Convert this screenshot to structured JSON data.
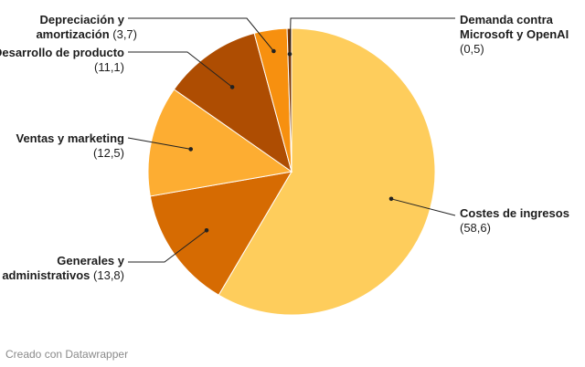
{
  "chart_data": {
    "type": "pie",
    "slices": [
      {
        "name": "Costes de ingresos",
        "value": 58.6,
        "value_label": "(58,6)",
        "color": "#fecd5c",
        "side": "right"
      },
      {
        "name": "Generales y administrativos",
        "value": 13.8,
        "value_label": "(13,8)",
        "color": "#d66b02",
        "side": "left"
      },
      {
        "name": "Ventas y marketing",
        "value": 12.5,
        "value_label": "(12,5)",
        "color": "#fdad32",
        "side": "left"
      },
      {
        "name": "Desarrollo de producto",
        "value": 11.1,
        "value_label": "(11,1)",
        "color": "#ae4d02",
        "side": "left"
      },
      {
        "name": "Depreciación y amortización",
        "value": 3.7,
        "value_label": "(3,7)",
        "color": "#f7900f",
        "side": "left"
      },
      {
        "name": "Demanda contra Microsoft y OpenAI",
        "value": 0.5,
        "value_label": "(0,5)",
        "color": "#7d3703",
        "side": "right"
      }
    ],
    "start_angle_deg": 0,
    "direction": "clockwise",
    "labels_outside_with_leader_lines": true
  },
  "credit": "Creado con Datawrapper"
}
